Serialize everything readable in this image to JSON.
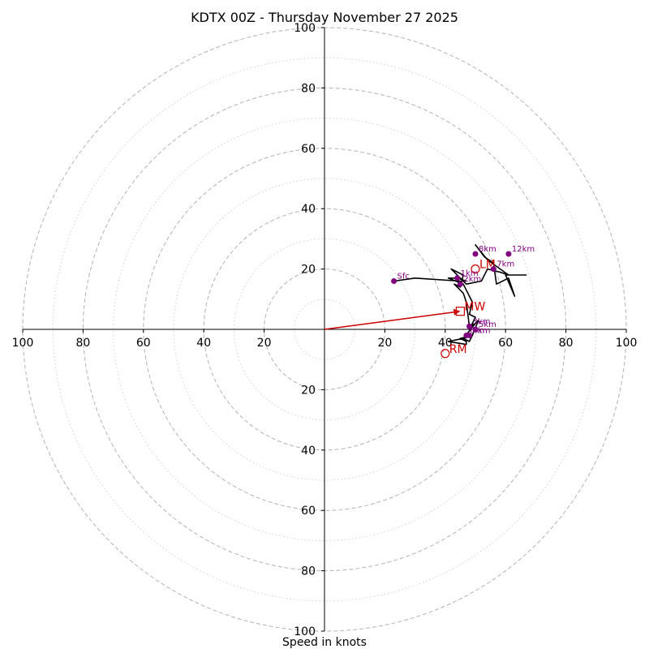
{
  "chart_data": {
    "type": "hodograph",
    "title": "KDTX 00Z - Thursday November 27 2025",
    "xlabel": "Speed in knots",
    "units": "knots",
    "range": [
      -100,
      100
    ],
    "ring_major": [
      20,
      40,
      60,
      80,
      100
    ],
    "ring_minor": [
      10,
      30,
      50,
      70,
      90
    ],
    "tick_labels": [
      "100",
      "80",
      "60",
      "40",
      "20",
      "20",
      "40",
      "60",
      "80",
      "100"
    ],
    "trace": [
      [
        23,
        16
      ],
      [
        30,
        17
      ],
      [
        45,
        16
      ],
      [
        47,
        16
      ],
      [
        44,
        17
      ],
      [
        41,
        17
      ],
      [
        46,
        15
      ],
      [
        49,
        9
      ],
      [
        48,
        5
      ],
      [
        50,
        4
      ],
      [
        48,
        0
      ],
      [
        51,
        3
      ],
      [
        49,
        -2
      ],
      [
        46,
        -3
      ],
      [
        48,
        -4
      ],
      [
        49,
        -2
      ],
      [
        45,
        -3
      ],
      [
        47,
        -4
      ],
      [
        47,
        -5
      ],
      [
        41,
        -4
      ],
      [
        46,
        -3
      ],
      [
        50,
        2
      ],
      [
        48,
        1
      ],
      [
        47,
        9
      ],
      [
        46,
        12
      ],
      [
        43,
        15
      ],
      [
        45,
        14
      ],
      [
        46,
        18
      ],
      [
        42,
        20
      ],
      [
        47,
        15
      ],
      [
        52,
        16
      ],
      [
        54,
        20
      ],
      [
        58,
        19
      ],
      [
        61,
        18
      ],
      [
        54,
        23
      ],
      [
        50,
        28
      ],
      [
        53,
        24
      ],
      [
        56,
        22
      ],
      [
        57,
        15
      ],
      [
        61,
        17
      ],
      [
        63,
        11
      ],
      [
        60,
        18
      ],
      [
        67,
        18
      ]
    ],
    "levels": [
      {
        "label": "Sfc",
        "u": 23,
        "v": 16
      },
      {
        "label": "1km",
        "u": 44,
        "v": 17
      },
      {
        "label": "2km",
        "u": 45,
        "v": 15
      },
      {
        "label": "3km",
        "u": 48,
        "v": 1
      },
      {
        "label": "4km",
        "u": 48,
        "v": -2
      },
      {
        "label": "5km",
        "u": 50,
        "v": 0
      },
      {
        "label": "6km",
        "u": 47,
        "v": -2
      },
      {
        "label": "7km",
        "u": 56,
        "v": 20
      },
      {
        "label": "8km",
        "u": 50,
        "v": 25
      },
      {
        "label": "12km",
        "u": 61,
        "v": 25
      }
    ],
    "markers": [
      {
        "label": "MW",
        "shape": "square",
        "u": 45,
        "v": 6
      },
      {
        "label": "LM",
        "shape": "circle",
        "u": 50,
        "v": 20
      },
      {
        "label": "RM",
        "shape": "circle",
        "u": 40,
        "v": -8
      }
    ],
    "mean_wind_vector": {
      "u": 45,
      "v": 6
    },
    "colors": {
      "trace": "#000000",
      "level": "#800080",
      "marker": "#cc0000",
      "grid": "#b3b3b3"
    }
  }
}
